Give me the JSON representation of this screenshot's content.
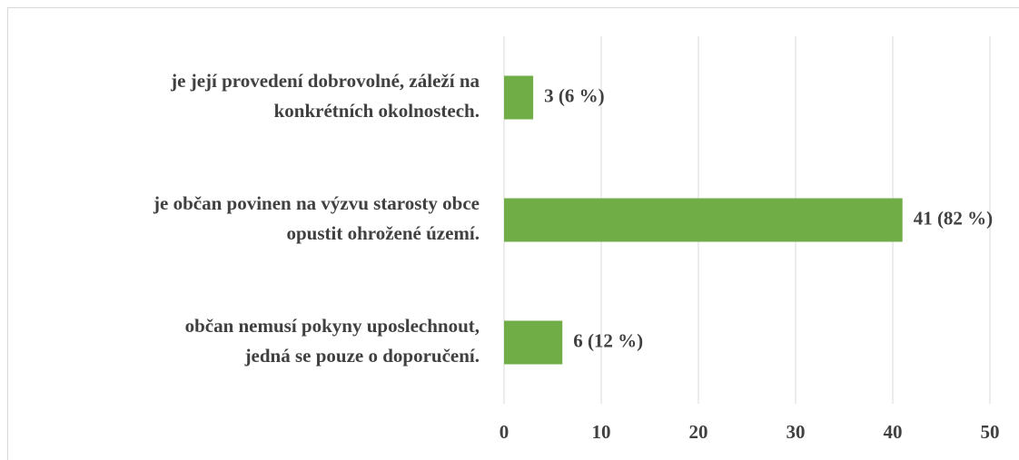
{
  "chart_data": {
    "type": "bar",
    "orientation": "horizontal",
    "categories": [
      [
        "je její provedení dobrovolné, záleží na",
        "konkrétních okolnostech."
      ],
      [
        "je občan povinen na výzvu starosty obce",
        "opustit ohrožené území."
      ],
      [
        "občan nemusí pokyny uposlechnout,",
        "jedná se pouze o doporučení."
      ]
    ],
    "values": [
      3,
      41,
      6
    ],
    "value_labels": [
      "3 (6 %)",
      "41 (82 %)",
      "6 (12 %)"
    ],
    "color": "#70ad47",
    "xlim": [
      0,
      50
    ],
    "xticks": [
      0,
      10,
      20,
      30,
      40,
      50
    ],
    "grid": true
  }
}
